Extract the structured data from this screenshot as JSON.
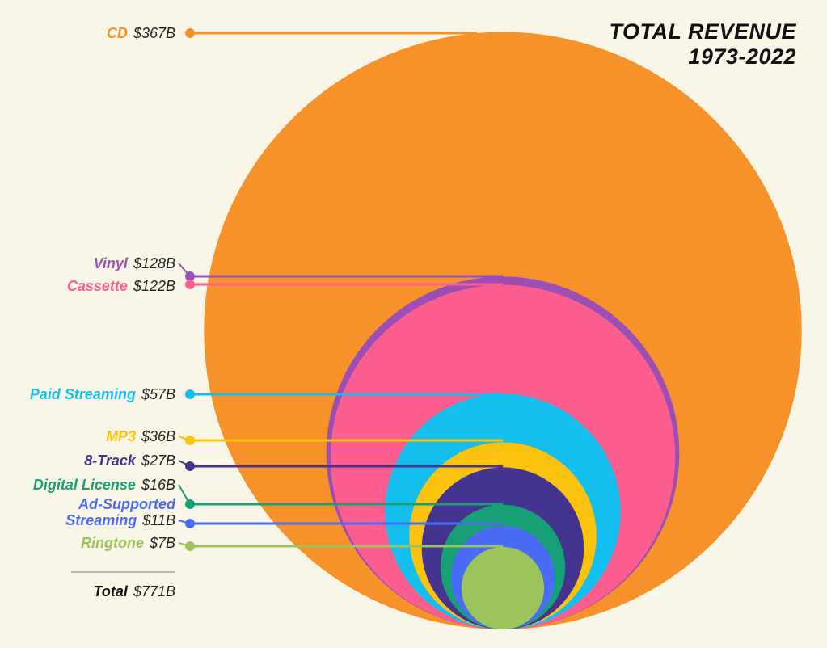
{
  "chart_data": {
    "type": "nested-bubble",
    "title": "TOTAL REVENUE",
    "subtitle": "1973-2022",
    "unit": "$B",
    "series": [
      {
        "name": "CD",
        "value": 367,
        "label": "$367B",
        "color": "#f7922a"
      },
      {
        "name": "Vinyl",
        "value": 128,
        "label": "$128B",
        "color": "#9b4fb5"
      },
      {
        "name": "Cassette",
        "value": 122,
        "label": "$122B",
        "color": "#fc5f8f"
      },
      {
        "name": "Paid Streaming",
        "value": 57,
        "label": "$57B",
        "color": "#14bff0"
      },
      {
        "name": "MP3",
        "value": 36,
        "label": "$36B",
        "color": "#fbc20f"
      },
      {
        "name": "8-Track",
        "value": 27,
        "label": "$27B",
        "color": "#44338f"
      },
      {
        "name": "Digital License",
        "value": 16,
        "label": "$16B",
        "color": "#17a076"
      },
      {
        "name": "Ad-Supported Streaming",
        "value": 11,
        "label": "$11B",
        "color": "#4a6cf5"
      },
      {
        "name": "Ringtone",
        "value": 7,
        "label": "$7B",
        "color": "#9bc45a"
      }
    ],
    "total": {
      "name": "Total",
      "value": 771,
      "label": "$771B"
    }
  }
}
